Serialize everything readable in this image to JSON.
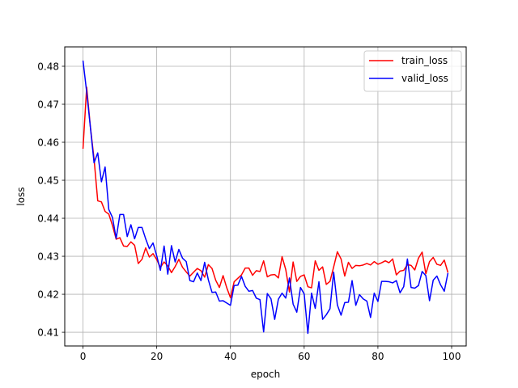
{
  "chart_data": {
    "type": "line",
    "xlabel": "epoch",
    "ylabel": "loss",
    "xlim": [
      -4.95,
      103.95
    ],
    "ylim": [
      0.4064,
      0.4851
    ],
    "xticks": [
      0,
      20,
      40,
      60,
      80,
      100
    ],
    "yticks": [
      0.41,
      0.42,
      0.43,
      0.44,
      0.45,
      0.46,
      0.47,
      0.48
    ],
    "xtick_labels": [
      "0",
      "20",
      "40",
      "60",
      "80",
      "100"
    ],
    "ytick_labels": [
      "0.41",
      "0.42",
      "0.43",
      "0.44",
      "0.45",
      "0.46",
      "0.47",
      "0.48"
    ],
    "grid": true,
    "legend_position": "top-right",
    "legend": [
      "train_loss",
      "valid_loss"
    ],
    "series": [
      {
        "name": "train_loss",
        "color": "#ff0000",
        "x": [
          0,
          1,
          2,
          3,
          4,
          5,
          6,
          7,
          8,
          9,
          10,
          11,
          12,
          13,
          14,
          15,
          16,
          17,
          18,
          19,
          20,
          21,
          22,
          23,
          24,
          25,
          26,
          27,
          28,
          29,
          30,
          31,
          32,
          33,
          34,
          35,
          36,
          37,
          38,
          39,
          40,
          41,
          42,
          43,
          44,
          45,
          46,
          47,
          48,
          49,
          50,
          51,
          52,
          53,
          54,
          55,
          56,
          57,
          58,
          59,
          60,
          61,
          62,
          63,
          64,
          65,
          66,
          67,
          68,
          69,
          70,
          71,
          72,
          73,
          74,
          75,
          76,
          77,
          78,
          79,
          80,
          81,
          82,
          83,
          84,
          85,
          86,
          87,
          88,
          89,
          90,
          91,
          92,
          93,
          94,
          95,
          96,
          97,
          98,
          99
        ],
        "y": [
          0.4583,
          0.4745,
          0.4641,
          0.4556,
          0.4446,
          0.4443,
          0.4418,
          0.4411,
          0.4381,
          0.4345,
          0.4349,
          0.4327,
          0.4326,
          0.4338,
          0.4329,
          0.4281,
          0.4292,
          0.4322,
          0.4298,
          0.4307,
          0.4291,
          0.4271,
          0.4285,
          0.4275,
          0.4257,
          0.4273,
          0.4292,
          0.4271,
          0.4259,
          0.4248,
          0.4258,
          0.4268,
          0.4262,
          0.4245,
          0.4278,
          0.4268,
          0.4237,
          0.4218,
          0.4249,
          0.4217,
          0.4191,
          0.4233,
          0.4242,
          0.4251,
          0.4269,
          0.4269,
          0.425,
          0.4262,
          0.426,
          0.4288,
          0.4246,
          0.4251,
          0.4252,
          0.4243,
          0.4299,
          0.4265,
          0.4206,
          0.4285,
          0.4234,
          0.4247,
          0.4251,
          0.422,
          0.4217,
          0.4288,
          0.4263,
          0.4272,
          0.4226,
          0.4234,
          0.4272,
          0.4312,
          0.4293,
          0.4248,
          0.4284,
          0.4268,
          0.4276,
          0.4275,
          0.4277,
          0.4281,
          0.4277,
          0.4286,
          0.4279,
          0.4283,
          0.4288,
          0.4283,
          0.4293,
          0.4251,
          0.4261,
          0.4263,
          0.4278,
          0.4276,
          0.4264,
          0.4295,
          0.4311,
          0.4254,
          0.4286,
          0.4297,
          0.4279,
          0.4276,
          0.429,
          0.4257
        ]
      },
      {
        "name": "valid_loss",
        "color": "#0000ff",
        "x": [
          0,
          1,
          2,
          3,
          4,
          5,
          6,
          7,
          8,
          9,
          10,
          11,
          12,
          13,
          14,
          15,
          16,
          17,
          18,
          19,
          20,
          21,
          22,
          23,
          24,
          25,
          26,
          27,
          28,
          29,
          30,
          31,
          32,
          33,
          34,
          35,
          36,
          37,
          38,
          39,
          40,
          41,
          42,
          43,
          44,
          45,
          46,
          47,
          48,
          49,
          50,
          51,
          52,
          53,
          54,
          55,
          56,
          57,
          58,
          59,
          60,
          61,
          62,
          63,
          64,
          65,
          66,
          67,
          68,
          69,
          70,
          71,
          72,
          73,
          74,
          75,
          76,
          77,
          78,
          79,
          80,
          81,
          82,
          83,
          84,
          85,
          86,
          87,
          88,
          89,
          90,
          91,
          92,
          93,
          94,
          95,
          96,
          97,
          98,
          99
        ],
        "y": [
          0.4815,
          0.4732,
          0.464,
          0.4546,
          0.4572,
          0.4496,
          0.4535,
          0.4423,
          0.4402,
          0.4347,
          0.441,
          0.441,
          0.4352,
          0.4383,
          0.4346,
          0.4376,
          0.4376,
          0.4346,
          0.432,
          0.4335,
          0.4301,
          0.4263,
          0.4327,
          0.4253,
          0.4328,
          0.4285,
          0.4318,
          0.4295,
          0.4286,
          0.4236,
          0.4233,
          0.4256,
          0.4236,
          0.4284,
          0.4238,
          0.4205,
          0.4206,
          0.4182,
          0.4183,
          0.4177,
          0.4171,
          0.4223,
          0.4224,
          0.4247,
          0.4221,
          0.4208,
          0.421,
          0.419,
          0.4186,
          0.4101,
          0.4202,
          0.4188,
          0.4134,
          0.4187,
          0.4203,
          0.419,
          0.4243,
          0.4174,
          0.4153,
          0.4218,
          0.4201,
          0.4097,
          0.4203,
          0.4163,
          0.4233,
          0.4134,
          0.4146,
          0.4162,
          0.4258,
          0.4172,
          0.4145,
          0.4178,
          0.4179,
          0.4236,
          0.4171,
          0.4199,
          0.4188,
          0.4182,
          0.4139,
          0.4203,
          0.4181,
          0.4234,
          0.4234,
          0.4233,
          0.423,
          0.4236,
          0.4204,
          0.422,
          0.4293,
          0.4218,
          0.4216,
          0.4223,
          0.426,
          0.4249,
          0.4183,
          0.4237,
          0.4248,
          0.4225,
          0.4208,
          0.4256
        ]
      }
    ]
  }
}
